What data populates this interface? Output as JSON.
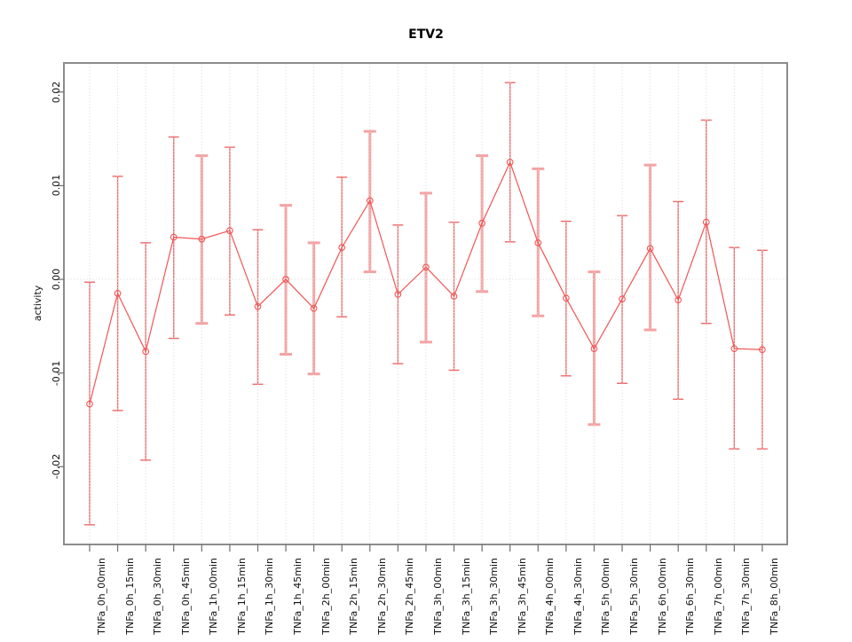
{
  "chart_data": {
    "type": "line",
    "subtype": "points-with-error-bars",
    "title": "ETV2",
    "xlabel": "",
    "ylabel": "activity",
    "ylim": [
      -0.0283,
      0.0231
    ],
    "y_ticks": [
      -0.02,
      -0.01,
      0.0,
      0.01,
      0.02
    ],
    "y_tick_labels": [
      "-0.02",
      "-0.01",
      "0.00",
      "0.01",
      "0.02"
    ],
    "categories": [
      "TNFa_0h_00min",
      "TNFa_0h_15min",
      "TNFa_0h_30min",
      "TNFa_0h_45min",
      "TNFa_1h_00min",
      "TNFa_1h_15min",
      "TNFa_1h_30min",
      "TNFa_1h_45min",
      "TNFa_2h_00min",
      "TNFa_2h_15min",
      "TNFa_2h_30min",
      "TNFa_2h_45min",
      "TNFa_3h_00min",
      "TNFa_3h_15min",
      "TNFa_3h_30min",
      "TNFa_3h_45min",
      "TNFa_4h_00min",
      "TNFa_4h_30min",
      "TNFa_5h_00min",
      "TNFa_5h_30min",
      "TNFa_6h_00min",
      "TNFa_6h_30min",
      "TNFa_7h_00min",
      "TNFa_7h_30min",
      "TNFa_8h_00min"
    ],
    "series": [
      {
        "name": "activity",
        "values": [
          -0.0133,
          -0.0015,
          -0.0077,
          0.0045,
          0.0043,
          0.0052,
          -0.0029,
          0.0,
          -0.0031,
          0.0034,
          0.0084,
          -0.0016,
          0.0013,
          -0.0018,
          0.006,
          0.0125,
          0.0039,
          -0.002,
          -0.0074,
          -0.0021,
          0.0033,
          -0.0022,
          0.0061,
          -0.0074,
          -0.0075
        ],
        "upper": [
          -0.0003,
          0.011,
          0.0039,
          0.0152,
          0.0132,
          0.0141,
          0.0053,
          0.0079,
          0.0039,
          0.0109,
          0.0158,
          0.0058,
          0.0092,
          0.0061,
          0.0132,
          0.021,
          0.0118,
          0.0062,
          0.0008,
          0.0068,
          0.0122,
          0.0083,
          0.017,
          0.0034,
          0.0031
        ],
        "lower": [
          -0.0262,
          -0.014,
          -0.0193,
          -0.0063,
          -0.0047,
          -0.0038,
          -0.0112,
          -0.008,
          -0.0101,
          -0.004,
          0.0008,
          -0.009,
          -0.0067,
          -0.0097,
          -0.0013,
          0.004,
          -0.0039,
          -0.0103,
          -0.0155,
          -0.0111,
          -0.0054,
          -0.0128,
          -0.0047,
          -0.0181,
          -0.0181
        ]
      }
    ],
    "bar_shade": [
      "dark",
      "dark",
      "dark",
      "dark",
      "light",
      "dark",
      "dark",
      "light",
      "light",
      "dark",
      "light",
      "dark",
      "light",
      "dark",
      "light",
      "dark",
      "light",
      "dark",
      "light",
      "dark",
      "light",
      "dark",
      "dark",
      "dark",
      "dark"
    ],
    "grid": "vertical dotted gridline at each category; dotted horizontal line at y=0",
    "legend": "none"
  },
  "colors": {
    "series_line": "#f05555",
    "point_stroke": "#f05555",
    "error_bar_light": "#f5a3a3",
    "error_bar_dark": "#ee6a6a",
    "gridline": "#d8d8d8",
    "zero_line": "#d8d8d8",
    "plot_border": "#8c8c8c",
    "tick_mark": "#6e6e6e",
    "text": "#111111"
  }
}
